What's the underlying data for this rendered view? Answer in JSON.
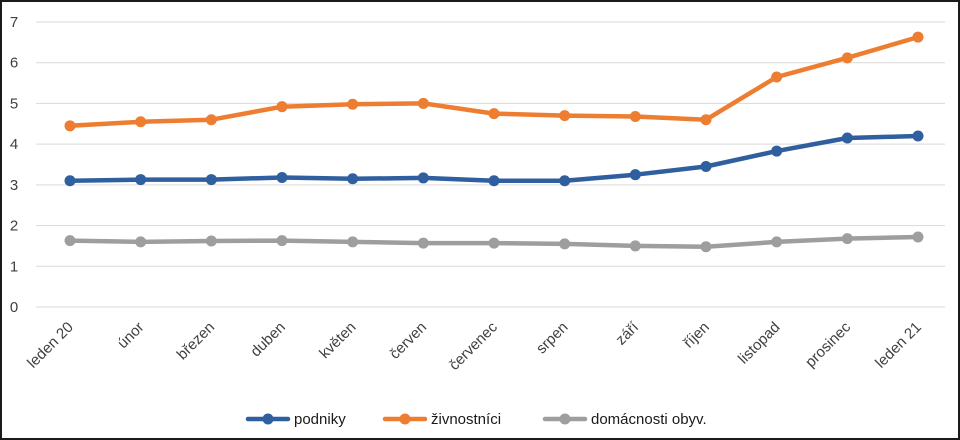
{
  "chart_data": {
    "type": "line",
    "categories": [
      "leden 20",
      "únor",
      "březen",
      "duben",
      "květen",
      "červen",
      "červenec",
      "srpen",
      "září",
      "říjen",
      "listopad",
      "prosinec",
      "leden 21"
    ],
    "series": [
      {
        "name": "podniky",
        "color": "#2f5f9e",
        "values": [
          3.1,
          3.13,
          3.13,
          3.18,
          3.15,
          3.17,
          3.1,
          3.1,
          3.25,
          3.45,
          3.83,
          4.15,
          4.2
        ]
      },
      {
        "name": "živnostníci",
        "color": "#ed7d31",
        "values": [
          4.45,
          4.55,
          4.6,
          4.92,
          4.98,
          5.0,
          4.75,
          4.7,
          4.68,
          4.6,
          5.65,
          6.12,
          6.63
        ]
      },
      {
        "name": "domácnosti obyv.",
        "color": "#9e9e9e",
        "values": [
          1.63,
          1.6,
          1.62,
          1.63,
          1.6,
          1.57,
          1.57,
          1.55,
          1.5,
          1.48,
          1.6,
          1.68,
          1.72
        ]
      }
    ],
    "ylim": [
      0,
      7
    ],
    "yticks": [
      0,
      1,
      2,
      3,
      4,
      5,
      6,
      7
    ],
    "grid": true,
    "legend_position": "bottom"
  }
}
